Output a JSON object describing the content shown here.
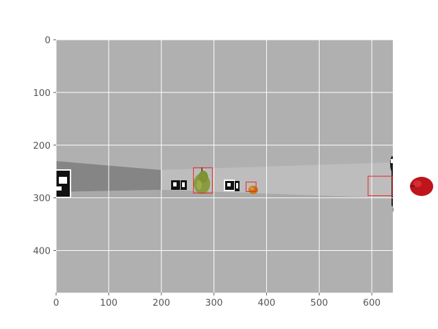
{
  "chart_data": {
    "type": "image",
    "title": "",
    "xlabel": "",
    "ylabel": "",
    "xlim": [
      0,
      640
    ],
    "ylim": [
      480,
      0
    ],
    "y_inverted": true,
    "grid": true,
    "x_ticks": [
      0,
      100,
      200,
      300,
      400,
      500,
      600
    ],
    "y_ticks": [
      0,
      100,
      200,
      300,
      400
    ],
    "x_tick_labels": [
      "0",
      "100",
      "200",
      "300",
      "400",
      "500",
      "600"
    ],
    "y_tick_labels": [
      "0",
      "100",
      "200",
      "300",
      "400"
    ],
    "image_content": {
      "background": "gray floor",
      "objects": [
        "pear",
        "orange",
        "red bell pepper",
        "fiducial markers"
      ]
    },
    "bounding_boxes": [
      {
        "label": "pear",
        "x": 261,
        "y": 243,
        "width": 36,
        "height": 48
      },
      {
        "label": "orange",
        "x": 361,
        "y": 270,
        "width": 19,
        "height": 18
      },
      {
        "label": "red bell pepper",
        "x": 593,
        "y": 259,
        "width": 46,
        "height": 37
      }
    ],
    "box_color": "#e8251f"
  },
  "colors": {
    "axes_background": "#b0b0b0",
    "grid": "#ffffff",
    "tick_text": "#555555",
    "box": "#e8251f"
  }
}
